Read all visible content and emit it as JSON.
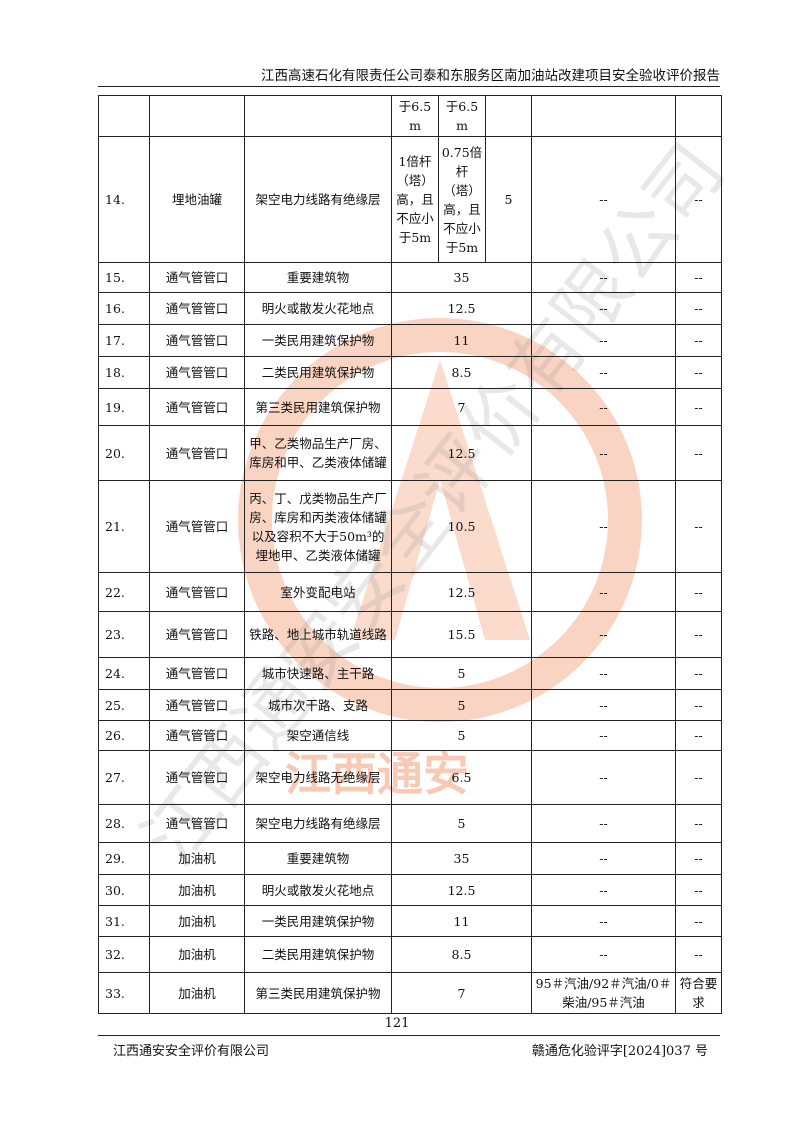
{
  "header": {
    "title": "江西高速石化有限责任公司泰和东服务区南加油站改建项目安全验收评价报告"
  },
  "table": {
    "rows": [
      {
        "no": "",
        "item": "",
        "target": "",
        "v1": "于6.5m",
        "v2": "于6.5m",
        "v3": "",
        "actual": "",
        "result": ""
      },
      {
        "no": "14.",
        "item": "埋地油罐",
        "target": "架空电力线路有绝缘层",
        "v1": "1倍杆（塔）高，且不应小于5m",
        "v2": "0.75倍杆（塔）高，且不应小于5m",
        "v3": "5",
        "actual": "--",
        "result": "--"
      },
      {
        "no": "15.",
        "item": "通气管管口",
        "target": "重要建筑物",
        "value": "35",
        "actual": "--",
        "result": "--"
      },
      {
        "no": "16.",
        "item": "通气管管口",
        "target": "明火或散发火花地点",
        "value": "12.5",
        "actual": "--",
        "result": "--"
      },
      {
        "no": "17.",
        "item": "通气管管口",
        "target": "一类民用建筑保护物",
        "value": "11",
        "actual": "--",
        "result": "--"
      },
      {
        "no": "18.",
        "item": "通气管管口",
        "target": "二类民用建筑保护物",
        "value": "8.5",
        "actual": "--",
        "result": "--"
      },
      {
        "no": "19.",
        "item": "通气管管口",
        "target": "第三类民用建筑保护物",
        "value": "7",
        "actual": "--",
        "result": "--"
      },
      {
        "no": "20.",
        "item": "通气管管口",
        "target": "甲、乙类物品生产厂房、库房和甲、乙类液体储罐",
        "value": "12.5",
        "actual": "--",
        "result": "--"
      },
      {
        "no": "21.",
        "item": "通气管管口",
        "target": "丙、丁、戊类物品生产厂房、库房和丙类液体储罐以及容积不大于50m³的埋地甲、乙类液体储罐",
        "value": "10.5",
        "actual": "--",
        "result": "--"
      },
      {
        "no": "22.",
        "item": "通气管管口",
        "target": "室外变配电站",
        "value": "12.5",
        "actual": "--",
        "result": "--"
      },
      {
        "no": "23.",
        "item": "通气管管口",
        "target": "铁路、地上城市轨道线路",
        "value": "15.5",
        "actual": "--",
        "result": "--"
      },
      {
        "no": "24.",
        "item": "通气管管口",
        "target": "城市快速路、主干路",
        "value": "5",
        "actual": "--",
        "result": "--"
      },
      {
        "no": "25.",
        "item": "通气管管口",
        "target": "城市次干路、支路",
        "value": "5",
        "actual": "--",
        "result": "--"
      },
      {
        "no": "26.",
        "item": "通气管管口",
        "target": "架空通信线",
        "value": "5",
        "actual": "--",
        "result": "--"
      },
      {
        "no": "27.",
        "item": "通气管管口",
        "target": "架空电力线路无绝缘层",
        "value": "6.5",
        "actual": "--",
        "result": "--"
      },
      {
        "no": "28.",
        "item": "通气管管口",
        "target": "架空电力线路有绝缘层",
        "value": "5",
        "actual": "--",
        "result": "--"
      },
      {
        "no": "29.",
        "item": "加油机",
        "target": "重要建筑物",
        "value": "35",
        "actual": "--",
        "result": "--"
      },
      {
        "no": "30.",
        "item": "加油机",
        "target": "明火或散发火花地点",
        "value": "12.5",
        "actual": "--",
        "result": "--"
      },
      {
        "no": "31.",
        "item": "加油机",
        "target": "一类民用建筑保护物",
        "value": "11",
        "actual": "--",
        "result": "--"
      },
      {
        "no": "32.",
        "item": "加油机",
        "target": "二类民用建筑保护物",
        "value": "8.5",
        "actual": "--",
        "result": "--"
      },
      {
        "no": "33.",
        "item": "加油机",
        "target": "第三类民用建筑保护物",
        "value": "7",
        "actual": "95＃汽油/92＃汽油/0＃柴油/95＃汽油",
        "result": "符合要求"
      }
    ]
  },
  "page_number": "121",
  "footer": {
    "company": "江西通安安全评价有限公司",
    "doc_no": "赣通危化验评字[2024]037 号"
  },
  "watermark": {
    "text": "江西通安安全评价有限公司",
    "stamp": "江西通安",
    "color": "#f08a5a"
  }
}
